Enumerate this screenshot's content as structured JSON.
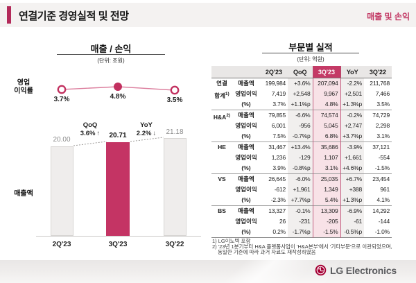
{
  "header": {
    "title": "연결기준 경영실적 및 전망",
    "tag": "매출 및 손익"
  },
  "left_chart": {
    "line_label_lines": [
      "영업",
      "이익률"
    ],
    "bar_label": "매출액"
  },
  "chart_data": [
    {
      "type": "combo_bar_line",
      "title": "매출 / 손익",
      "unit": "(단위: 조원)",
      "categories": [
        "2Q'23",
        "3Q'23",
        "3Q'22"
      ],
      "series": [
        {
          "name": "영업이익률",
          "type": "line",
          "values": [
            3.7,
            4.8,
            3.5
          ],
          "labels": [
            "3.7%",
            "4.8%",
            "3.5%"
          ]
        },
        {
          "name": "매출액",
          "type": "bar",
          "values": [
            20.0,
            20.71,
            21.18
          ],
          "labels": [
            "20.00",
            "20.71",
            "21.18"
          ]
        }
      ],
      "annotations": [
        {
          "title": "QoQ",
          "value": "3.6%",
          "arrow": "↑"
        },
        {
          "title": "YoY",
          "value": "2.2%",
          "arrow": "↓"
        }
      ],
      "highlight_index": 1,
      "legend_position": "left-axis-labels",
      "grid": false
    },
    {
      "type": "table",
      "title": "부문별 실적",
      "unit": "(단위: 억원)",
      "columns": [
        "2Q'23",
        "QoQ",
        "3Q'23",
        "YoY",
        "3Q'22"
      ],
      "highlight_column": "3Q'23",
      "groups": [
        {
          "label_lines": [
            "연결",
            "합계"
          ],
          "footnote_ref": "1)",
          "rows": [
            {
              "metric": "매출액",
              "values": [
                "199,984",
                "+3.6%",
                "207,094",
                "-2.2%",
                "211,768"
              ]
            },
            {
              "metric": "영업이익",
              "values": [
                "7,419",
                "+2,548",
                "9,967",
                "+2,501",
                "7,466"
              ]
            },
            {
              "metric": "(%)",
              "values": [
                "3.7%",
                "+1.1%p",
                "4.8%",
                "+1.3%p",
                "3.5%"
              ]
            }
          ]
        },
        {
          "label_lines": [
            "H&A"
          ],
          "footnote_ref": "2)",
          "rows": [
            {
              "metric": "매출액",
              "values": [
                "79,855",
                "-6.6%",
                "74,574",
                "-0.2%",
                "74,729"
              ]
            },
            {
              "metric": "영업이익",
              "values": [
                "6,001",
                "-956",
                "5,045",
                "+2,747",
                "2,298"
              ]
            },
            {
              "metric": "(%)",
              "values": [
                "7.5%",
                "-0.7%p",
                "6.8%",
                "+3.7%p",
                "3.1%"
              ]
            }
          ]
        },
        {
          "label_lines": [
            "HE"
          ],
          "footnote_ref": "",
          "rows": [
            {
              "metric": "매출액",
              "values": [
                "31,467",
                "+13.4%",
                "35,686",
                "-3.9%",
                "37,121"
              ]
            },
            {
              "metric": "영업이익",
              "values": [
                "1,236",
                "-129",
                "1,107",
                "+1,661",
                "-554"
              ]
            },
            {
              "metric": "(%)",
              "values": [
                "3.9%",
                "-0.8%p",
                "3.1%",
                "+4.6%p",
                "-1.5%"
              ]
            }
          ]
        },
        {
          "label_lines": [
            "VS"
          ],
          "footnote_ref": "",
          "rows": [
            {
              "metric": "매출액",
              "values": [
                "26,645",
                "-6.0%",
                "25,035",
                "+6.7%",
                "23,454"
              ]
            },
            {
              "metric": "영업이익",
              "values": [
                "-612",
                "+1,961",
                "1,349",
                "+388",
                "961"
              ]
            },
            {
              "metric": "(%)",
              "values": [
                "-2.3%",
                "+7.7%p",
                "5.4%",
                "+1.3%p",
                "4.1%"
              ]
            }
          ]
        },
        {
          "label_lines": [
            "BS"
          ],
          "footnote_ref": "",
          "rows": [
            {
              "metric": "매출액",
              "values": [
                "13,327",
                "-0.1%",
                "13,309",
                "-6.9%",
                "14,292"
              ]
            },
            {
              "metric": "영업이익",
              "values": [
                "26",
                "-231",
                "-205",
                "-61",
                "-144"
              ]
            },
            {
              "metric": "(%)",
              "values": [
                "0.2%",
                "-1.7%p",
                "-1.5%",
                "-0.5%p",
                "-1.0%"
              ]
            }
          ]
        }
      ],
      "footnotes": [
        "1) LG이노텍 포함",
        "2) '23년 1분기부터 H&A 플랫폼사업이 'H&A본부'에서 '기타부문'으로 이관되었으며,",
        "동일한 기준에 따라 과거 자료도 재작성하였음"
      ]
    }
  ],
  "footer": {
    "brand": "LG Electronics"
  },
  "colors": {
    "accent_bar": "#b32a5a",
    "highlight_pink": "#c43464",
    "table_header_pink": "#c43a66",
    "table_pink_bg": "#f8e2e7",
    "lg_logo_red": "#a50034"
  }
}
